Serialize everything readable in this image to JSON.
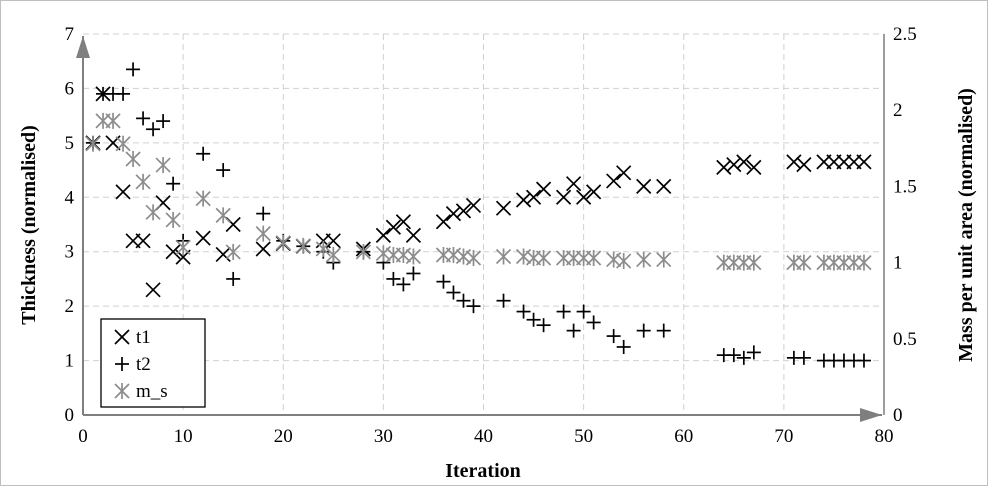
{
  "chart_data": {
    "type": "scatter",
    "title": "",
    "xlabel": "Iteration",
    "ylabel": "Thickness (normalised)",
    "y2label": "Mass per unit area (normalised)",
    "xlim": [
      0,
      80
    ],
    "ylim": [
      0,
      7
    ],
    "y2lim": [
      0,
      2.5
    ],
    "xticks": [
      "0",
      "10",
      "20",
      "30",
      "40",
      "50",
      "60",
      "70",
      "80"
    ],
    "yticks": [
      "0",
      "1",
      "2",
      "3",
      "4",
      "5",
      "6",
      "7"
    ],
    "y2ticks": [
      "0",
      "0.5",
      "1",
      "1.5",
      "2",
      "2.5"
    ],
    "grid": true,
    "legend_position": "bottom-left",
    "series": [
      {
        "name": "t1",
        "marker": "x",
        "axis": "left",
        "color": "#000000",
        "x": [
          1,
          2,
          3,
          4,
          5,
          6,
          7,
          8,
          9,
          10,
          12,
          14,
          15,
          18,
          20,
          22,
          24,
          25,
          28,
          30,
          31,
          32,
          33,
          36,
          37,
          38,
          39,
          42,
          44,
          45,
          46,
          48,
          49,
          50,
          51,
          53,
          54,
          56,
          58,
          64,
          65,
          66,
          67,
          71,
          72,
          74,
          75,
          76,
          77,
          78
        ],
        "y": [
          5.0,
          5.9,
          5.0,
          4.1,
          3.2,
          3.2,
          2.3,
          3.9,
          3.0,
          2.9,
          3.25,
          2.95,
          3.5,
          3.05,
          3.15,
          3.1,
          3.2,
          3.2,
          3.05,
          3.3,
          3.45,
          3.55,
          3.3,
          3.55,
          3.7,
          3.75,
          3.85,
          3.8,
          3.95,
          4.0,
          4.15,
          4.0,
          4.25,
          4.0,
          4.1,
          4.3,
          4.45,
          4.2,
          4.2,
          4.55,
          4.6,
          4.65,
          4.55,
          4.65,
          4.6,
          4.65,
          4.65,
          4.65,
          4.65,
          4.65
        ]
      },
      {
        "name": "t2",
        "marker": "+",
        "axis": "left",
        "color": "#000000",
        "x": [
          1,
          2,
          3,
          4,
          5,
          6,
          7,
          8,
          9,
          10,
          12,
          14,
          15,
          18,
          20,
          22,
          24,
          25,
          28,
          30,
          31,
          32,
          33,
          36,
          37,
          38,
          39,
          42,
          44,
          45,
          46,
          48,
          49,
          50,
          51,
          53,
          54,
          56,
          58,
          64,
          65,
          66,
          67,
          71,
          72,
          74,
          75,
          76,
          77,
          78
        ],
        "y": [
          5.0,
          5.9,
          5.9,
          5.9,
          6.35,
          5.45,
          5.25,
          5.4,
          4.25,
          3.2,
          4.8,
          4.5,
          2.5,
          3.7,
          3.2,
          3.1,
          3.0,
          2.8,
          3.0,
          2.8,
          2.5,
          2.4,
          2.6,
          2.45,
          2.25,
          2.1,
          2.0,
          2.1,
          1.9,
          1.75,
          1.65,
          1.9,
          1.55,
          1.9,
          1.7,
          1.45,
          1.25,
          1.55,
          1.55,
          1.1,
          1.1,
          1.05,
          1.15,
          1.05,
          1.05,
          1.0,
          1.0,
          1.0,
          1.0,
          1.0
        ]
      },
      {
        "name": "m_s",
        "marker": "asterisk",
        "axis": "right",
        "color": "#8c8c8c",
        "x": [
          1,
          2,
          3,
          4,
          5,
          6,
          7,
          8,
          9,
          10,
          12,
          14,
          15,
          18,
          20,
          22,
          24,
          25,
          28,
          30,
          31,
          32,
          33,
          36,
          37,
          38,
          39,
          42,
          44,
          45,
          46,
          48,
          49,
          50,
          51,
          53,
          54,
          56,
          58,
          64,
          65,
          66,
          67,
          71,
          72,
          74,
          75,
          76,
          77,
          78
        ],
        "y": [
          1.78,
          1.93,
          1.93,
          1.78,
          1.68,
          1.53,
          1.33,
          1.64,
          1.28,
          1.1,
          1.42,
          1.31,
          1.07,
          1.19,
          1.13,
          1.11,
          1.09,
          1.05,
          1.07,
          1.06,
          1.05,
          1.05,
          1.04,
          1.05,
          1.05,
          1.04,
          1.03,
          1.04,
          1.04,
          1.03,
          1.03,
          1.03,
          1.03,
          1.03,
          1.03,
          1.02,
          1.01,
          1.02,
          1.02,
          1.0,
          1.0,
          1.0,
          1.0,
          1.0,
          1.0,
          1.0,
          1.0,
          1.0,
          1.0,
          1.0
        ]
      }
    ]
  }
}
